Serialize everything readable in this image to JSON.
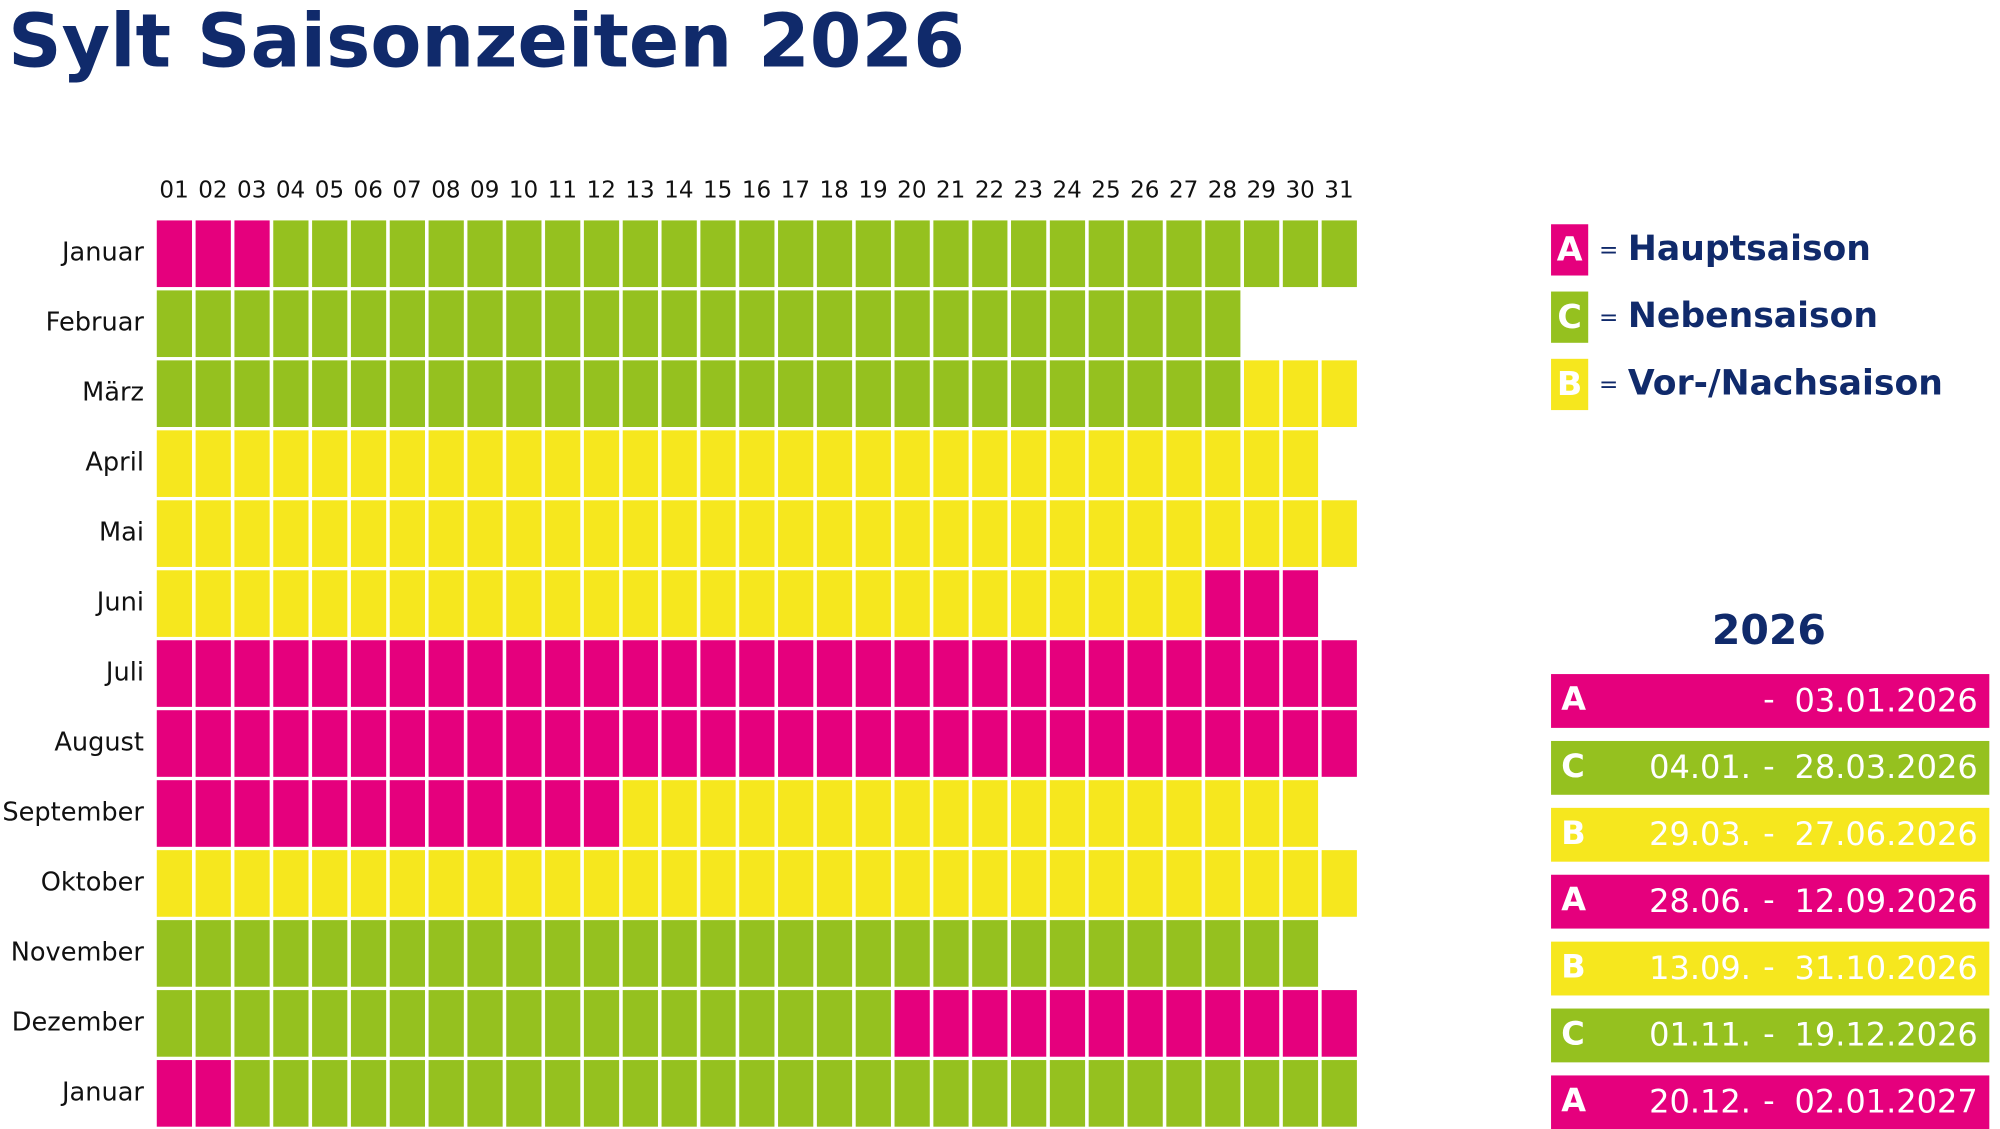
{
  "header": {
    "title": "Sylt Saisonzeiten 2026"
  },
  "calendar": {
    "days": [
      "01",
      "02",
      "03",
      "04",
      "05",
      "06",
      "07",
      "08",
      "09",
      "10",
      "11",
      "12",
      "13",
      "14",
      "15",
      "16",
      "17",
      "18",
      "19",
      "20",
      "21",
      "22",
      "23",
      "24",
      "25",
      "26",
      "27",
      "28",
      "29",
      "30",
      "31"
    ],
    "months": [
      {
        "name": "Januar",
        "cells": "AAACCCCCCCCCCCCCCCCCCCCCCCCCCCC"
      },
      {
        "name": "Februar",
        "cells": "CCCCCCCCCCCCCCCCCCCCCCCCCCCC"
      },
      {
        "name": "März",
        "cells": "CCCCCCCCCCCCCCCCCCCCCCCCCCCCBBB"
      },
      {
        "name": "April",
        "cells": "BBBBBBBBBBBBBBBBBBBBBBBBBBBBBB"
      },
      {
        "name": "Mai",
        "cells": "BBBBBBBBBBBBBBBBBBBBBBBBBBBBBBB"
      },
      {
        "name": "Juni",
        "cells": "BBBBBBBBBBBBBBBBBBBBBBBBBBBAAA"
      },
      {
        "name": "Juli",
        "cells": "AAAAAAAAAAAAAAAAAAAAAAAAAAAAAAA"
      },
      {
        "name": "August",
        "cells": "AAAAAAAAAAAAAAAAAAAAAAAAAAAAAAA"
      },
      {
        "name": "September",
        "cells": "AAAAAAAAAAAABBBBBBBBBBBBBBBBBB"
      },
      {
        "name": "Oktober",
        "cells": "BBBBBBBBBBBBBBBBBBBBBBBBBBBBBBB"
      },
      {
        "name": "November",
        "cells": "CCCCCCCCCCCCCCCCCCCCCCCCCCCCCC"
      },
      {
        "name": "Dezember",
        "cells": "CCCCCCCCCCCCCCCCCCCAAAAAAAAAAAA"
      },
      {
        "name": "Januar",
        "cells": "AACCCCCCCCCCCCCCCCCCCCCCCCCCCCC"
      }
    ]
  },
  "seasons": {
    "A": "#e5007d",
    "C": "#95c11f",
    "B": "#f6e71e"
  },
  "legend": {
    "separator": "=",
    "items": [
      {
        "code": "A",
        "label": "Hauptsaison"
      },
      {
        "code": "C",
        "label": "Nebensaison"
      },
      {
        "code": "B",
        "label": "Vor-/Nachsaison"
      }
    ]
  },
  "periods": {
    "title": "2026",
    "dash": "-",
    "rows": [
      {
        "code": "A",
        "to": "03.01.2026"
      },
      {
        "code": "C",
        "from": "04.01.",
        "to": "28.03.2026"
      },
      {
        "code": "B",
        "from": "29.03.",
        "to": "27.06.2026"
      },
      {
        "code": "A",
        "from": "28.06.",
        "to": "12.09.2026"
      },
      {
        "code": "B",
        "from": "13.09.",
        "to": "31.10.2026"
      },
      {
        "code": "C",
        "from": "01.11.",
        "to": "19.12.2026"
      },
      {
        "code": "A",
        "from": "20.12.",
        "to": "02.01.2027"
      }
    ]
  }
}
